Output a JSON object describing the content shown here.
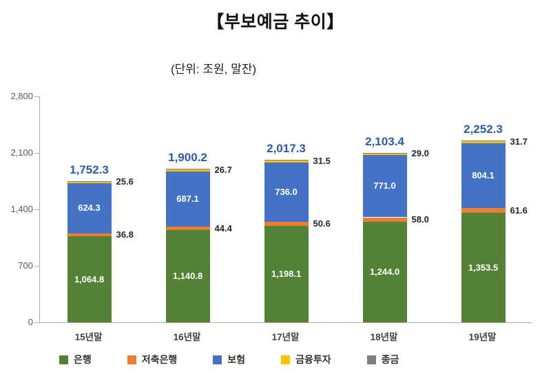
{
  "title": "【부보예금 추이】",
  "subtitle": "(단위: 조원, 말잔)",
  "chart_data": {
    "type": "bar",
    "stacked": true,
    "title": "부보예금 추이",
    "unit_note": "단위: 조원, 말잔",
    "categories": [
      "15년말",
      "16년말",
      "17년말",
      "18년말",
      "19년말"
    ],
    "series": [
      {
        "name": "은행",
        "color": "#538135",
        "label_style": "inside",
        "values": [
          1064.8,
          1140.8,
          1198.1,
          1244.0,
          1353.5
        ]
      },
      {
        "name": "저축은행",
        "color": "#ED7D31",
        "label_style": "right",
        "values": [
          36.8,
          44.4,
          50.6,
          58.0,
          61.6
        ]
      },
      {
        "name": "보험",
        "color": "#4472C4",
        "label_style": "inside",
        "values": [
          624.3,
          687.1,
          736.0,
          771.0,
          804.1
        ]
      },
      {
        "name": "금융투자",
        "color": "#FFC000",
        "label_style": "right",
        "values": [
          25.6,
          26.7,
          31.5,
          29.0,
          31.7
        ]
      },
      {
        "name": "종금",
        "color": "#7F7F7F",
        "label_style": "none",
        "values": [
          0.8,
          1.2,
          1.1,
          1.4,
          1.4
        ]
      }
    ],
    "totals": [
      1752.3,
      1900.2,
      2017.3,
      2103.4,
      2252.3
    ],
    "total_label_color": "#2a5caa",
    "ylim": [
      0,
      2800
    ],
    "y_ticks": [
      0,
      700,
      1400,
      2100,
      2800
    ],
    "grid": false,
    "legend_position": "bottom"
  }
}
